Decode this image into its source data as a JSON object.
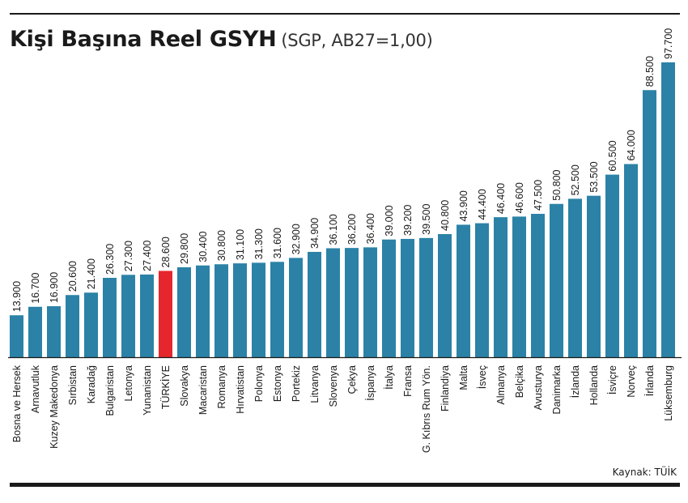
{
  "title": "Kişi Başına Reel GSYH",
  "subtitle": "(SGP, AB27=1,00)",
  "source": "Kaynak: TÜİK",
  "colors": {
    "bar": "#2b82a6",
    "highlight": "#e5262d",
    "axis": "#1a1a1a"
  },
  "chart_data": {
    "type": "bar",
    "title": "Kişi Başına Reel GSYH",
    "subtitle": "(SGP, AB27=1,00)",
    "highlight": "TÜRKİYE",
    "categories": [
      "Bosna ve Hersek",
      "Arnavutluk",
      "Kuzey Makedonya",
      "Sırbistan",
      "Karadağ",
      "Bulgaristan",
      "Letonya",
      "Yunanistan",
      "TÜRKİYE",
      "Slovakya",
      "Macaristan",
      "Romanya",
      "Hırvatistan",
      "Polonya",
      "Estonya",
      "Portekiz",
      "Litvanya",
      "Slovenya",
      "Çekya",
      "İspanya",
      "İtalya",
      "Fransa",
      "G. Kıbrıs Rum Yön.",
      "Finlandiya",
      "Malta",
      "İsveç",
      "Almanya",
      "Belçika",
      "Avusturya",
      "Danimarka",
      "İzlanda",
      "Hollanda",
      "İsviçre",
      "Norveç",
      "İrlanda",
      "Lüksemburg"
    ],
    "values": [
      13.9,
      16.7,
      16.9,
      20.6,
      21.4,
      26.3,
      27.3,
      27.4,
      28.6,
      29.8,
      30.4,
      30.8,
      31.1,
      31.3,
      31.6,
      32.9,
      34.9,
      36.1,
      36.2,
      36.4,
      39.0,
      39.2,
      39.5,
      40.8,
      43.9,
      44.4,
      46.4,
      46.6,
      47.5,
      50.8,
      52.5,
      53.5,
      60.5,
      64.0,
      88.5,
      97.7
    ],
    "value_labels": [
      "13.900",
      "16.700",
      "16.900",
      "20.600",
      "21.400",
      "26.300",
      "27.300",
      "27.400",
      "28.600",
      "29.800",
      "30.400",
      "30.800",
      "31.100",
      "31.300",
      "31.600",
      "32.900",
      "34.900",
      "36.100",
      "36.200",
      "36.400",
      "39.000",
      "39.200",
      "39.500",
      "40.800",
      "43.900",
      "44.400",
      "46.400",
      "46.600",
      "47.500",
      "50.800",
      "52.500",
      "53.500",
      "60.500",
      "64.000",
      "88.500",
      "97.700"
    ]
  }
}
